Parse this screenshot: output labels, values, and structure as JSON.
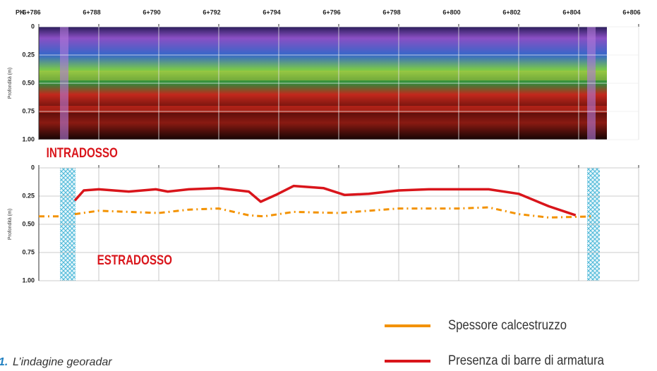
{
  "chart_data": {
    "type": "line",
    "x_label": "PK",
    "y_label": "Profondità (m)",
    "annotations": [
      "INTRADOSSO",
      "ESTRADOSSO"
    ],
    "caption_number": "1.",
    "caption": "L’indagine georadar",
    "xlim": [
      6786,
      6806
    ],
    "xticks": [
      {
        "value": 6786,
        "label": "6+786"
      },
      {
        "value": 6788,
        "label": "6+788"
      },
      {
        "value": 6790,
        "label": "6+790"
      },
      {
        "value": 6792,
        "label": "6+792"
      },
      {
        "value": 6794,
        "label": "6+794"
      },
      {
        "value": 6796,
        "label": "6+796"
      },
      {
        "value": 6798,
        "label": "6+798"
      },
      {
        "value": 6800,
        "label": "6+800"
      },
      {
        "value": 6802,
        "label": "6+802"
      },
      {
        "value": 6804,
        "label": "6+804"
      },
      {
        "value": 6806,
        "label": "6+806"
      }
    ],
    "ylim": [
      0,
      1
    ],
    "y_inverted": true,
    "yticks": [
      0,
      0.25,
      {
        "value": 0.5,
        "label": "0.50"
      },
      0.75,
      {
        "value": 1,
        "label": "1.00"
      }
    ],
    "grid": true,
    "series": [
      {
        "name": "Spessore calcestruzzo",
        "color": "#f39200",
        "dashed": true,
        "x": [
          6786,
          6786.7,
          null,
          6787.2,
          6788,
          6789,
          6790,
          6791,
          6792,
          6793,
          6793.5,
          6794.5,
          6796,
          6797,
          6798,
          6800,
          6801,
          6802,
          6803,
          6804.5
        ],
        "values": [
          0.43,
          0.43,
          null,
          0.41,
          0.38,
          0.39,
          0.4,
          0.37,
          0.36,
          0.42,
          0.43,
          0.39,
          0.4,
          0.38,
          0.36,
          0.36,
          0.35,
          0.41,
          0.44,
          0.43
        ]
      },
      {
        "name": "Presenza di barre di armatura",
        "color": "#d9151b",
        "dashed": false,
        "x": [
          6787.2,
          6787.5,
          6788,
          6789,
          6789.9,
          6790.3,
          6791,
          6792,
          6793,
          6793.4,
          6793.9,
          6794.5,
          6795.5,
          6796.2,
          6797,
          6798,
          6799,
          6801,
          6802,
          6803,
          6803.9
        ],
        "values": [
          0.29,
          0.2,
          0.19,
          0.21,
          0.19,
          0.21,
          0.19,
          0.18,
          0.21,
          0.3,
          0.24,
          0.16,
          0.18,
          0.24,
          0.23,
          0.2,
          0.19,
          0.19,
          0.23,
          0.34,
          0.42
        ]
      }
    ]
  }
}
